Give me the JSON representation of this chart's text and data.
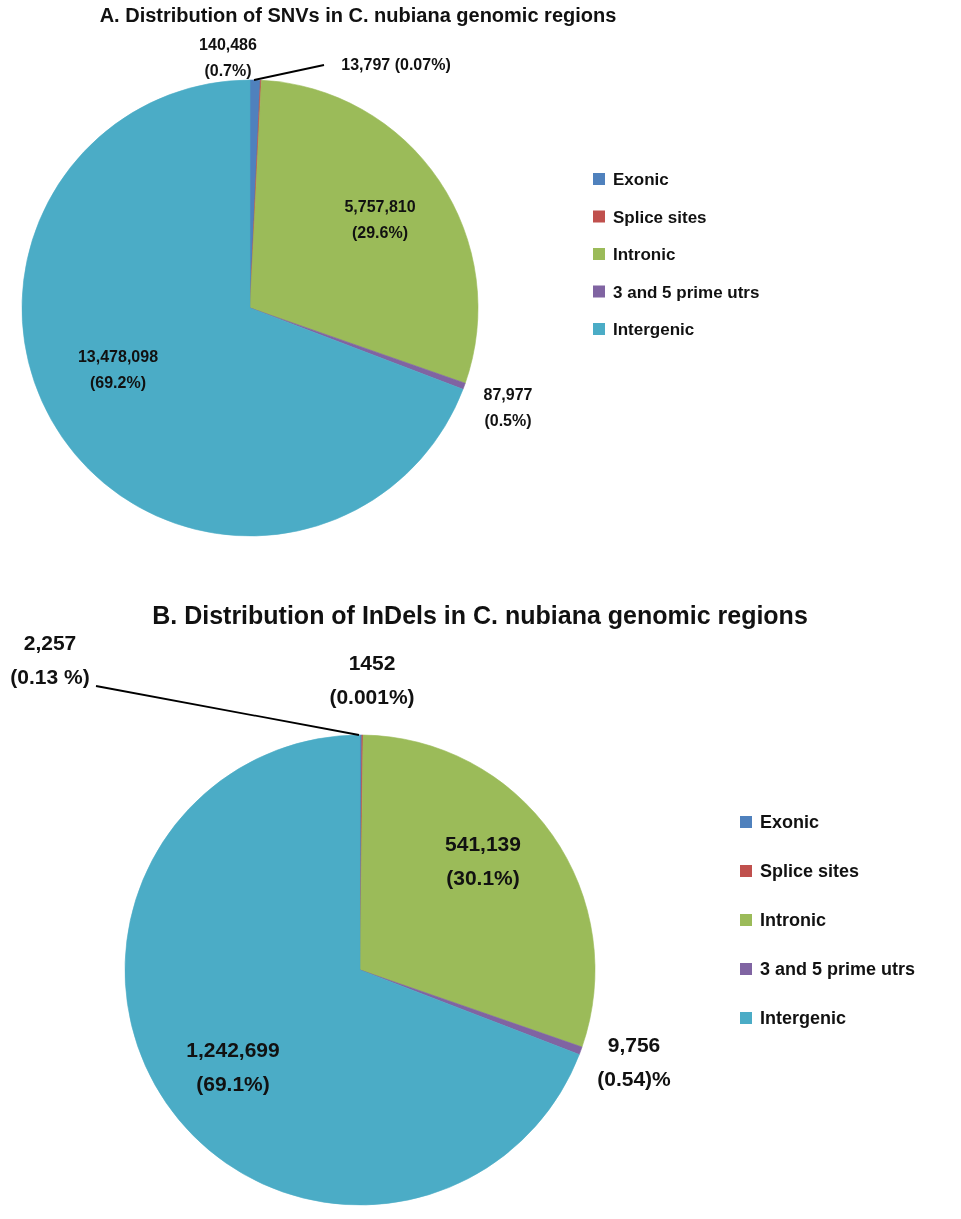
{
  "chart_data": [
    {
      "type": "pie",
      "title": "A. Distribution  of SNVs in C. nubiana genomic regions",
      "categories": [
        "Exonic",
        "Splice sites",
        "Intronic",
        "3 and 5 prime utrs",
        "Intergenic"
      ],
      "values": [
        140486,
        13797,
        5757810,
        87977,
        13478098
      ],
      "colors": [
        "#4f81bd",
        "#c0504d",
        "#9bbb59",
        "#8064a2",
        "#4bacc6"
      ],
      "value_labels": [
        "140,486\n(0.7%)",
        "13,797 (0.07%)",
        "5,757,810\n(29.6%)",
        "87,977\n(0.5%)",
        "13,478,098\n(69.2%)"
      ],
      "legend": "right"
    },
    {
      "type": "pie",
      "title": "B. Distribution of  InDels in C. nubiana genomic regions",
      "categories": [
        "Exonic",
        "Splice sites",
        "Intronic",
        "3 and 5 prime utrs",
        "Intergenic"
      ],
      "values": [
        2257,
        1452,
        541139,
        9756,
        1242699
      ],
      "colors": [
        "#4f81bd",
        "#c0504d",
        "#9bbb59",
        "#8064a2",
        "#4bacc6"
      ],
      "value_labels": [
        "2,257\n(0.13 %)",
        "1452\n(0.001%)",
        "541,139\n(30.1%)",
        "9,756\n(0.54)%",
        "1,242,699\n(69.1%)"
      ],
      "legend": "right"
    }
  ]
}
